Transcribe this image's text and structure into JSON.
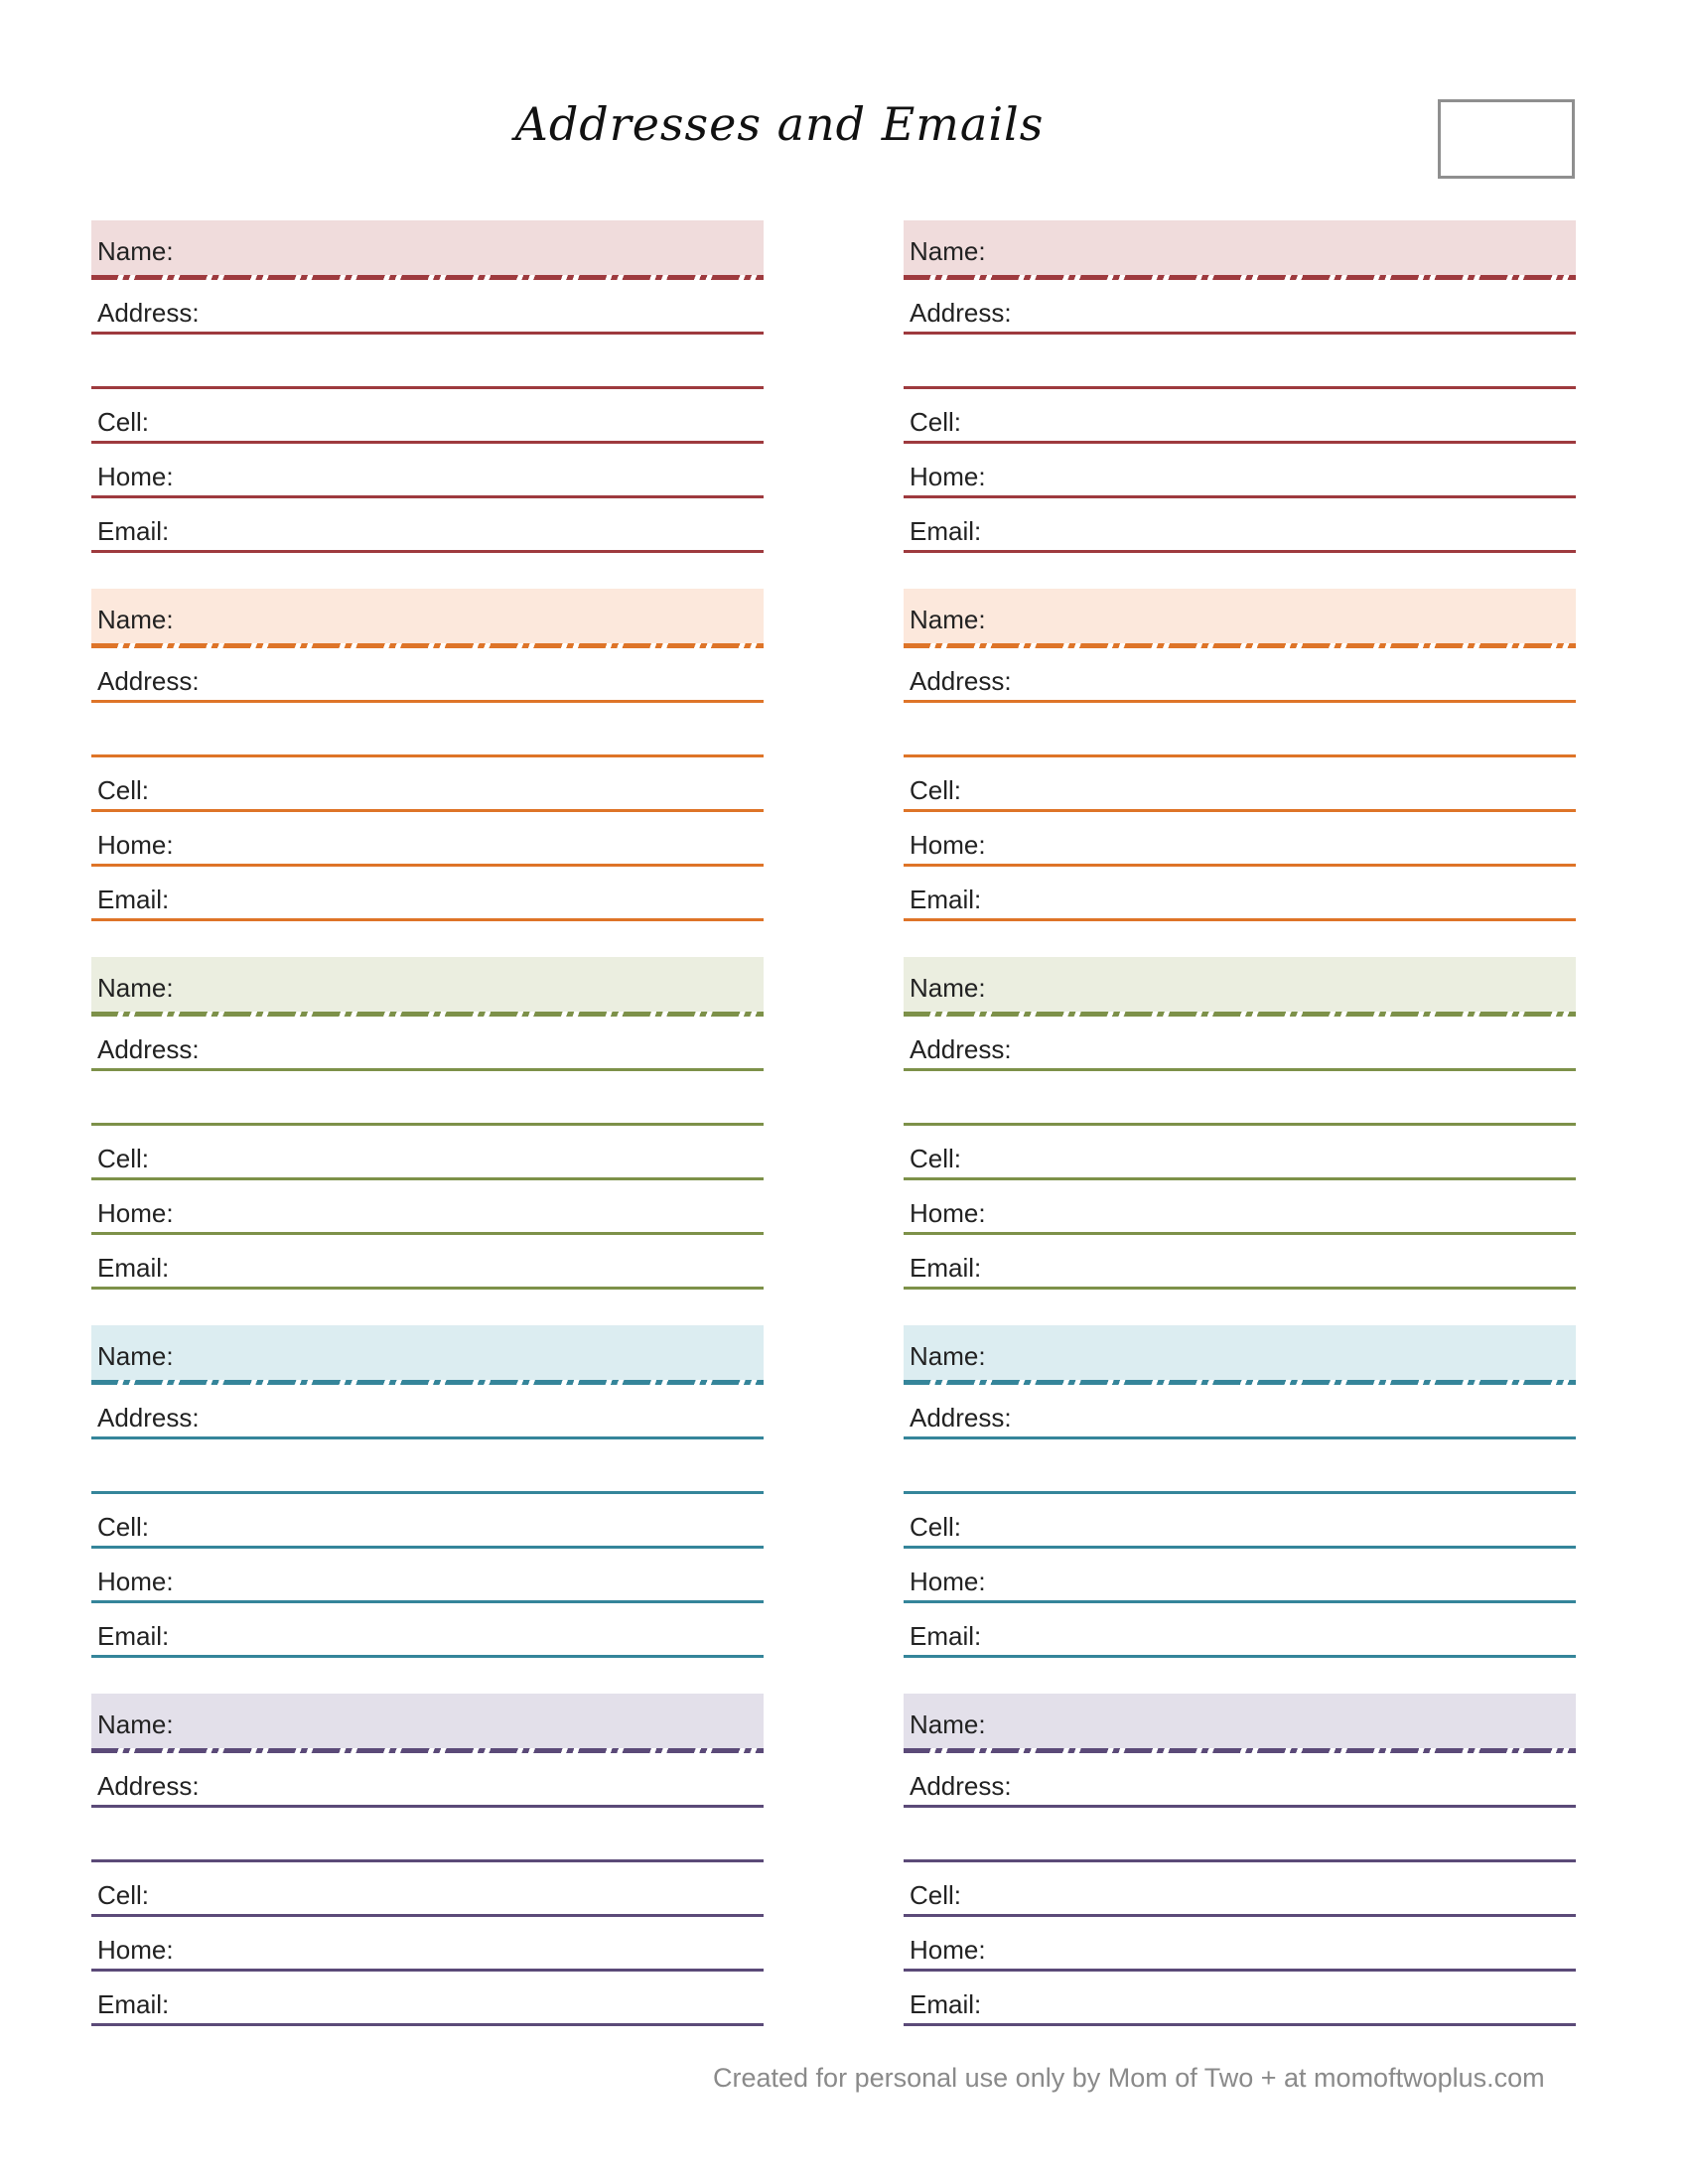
{
  "page": {
    "title": "Addresses and Emails",
    "footer": "Created for personal use only by Mom of Two + at momoftwoplus.com"
  },
  "fields": {
    "name": "Name:",
    "address": "Address:",
    "cell": "Cell:",
    "home": "Home:",
    "email": "Email:"
  },
  "themes": [
    {
      "name": "red",
      "band": "#F0DCDC",
      "line": "#9E3A3E"
    },
    {
      "name": "orange",
      "band": "#FCE8DC",
      "line": "#DE7428"
    },
    {
      "name": "green",
      "band": "#EBEEE0",
      "line": "#7D9149"
    },
    {
      "name": "blue",
      "band": "#DCEDF1",
      "line": "#35859A"
    },
    {
      "name": "purple",
      "band": "#E3E0EA",
      "line": "#5B4A78"
    }
  ]
}
